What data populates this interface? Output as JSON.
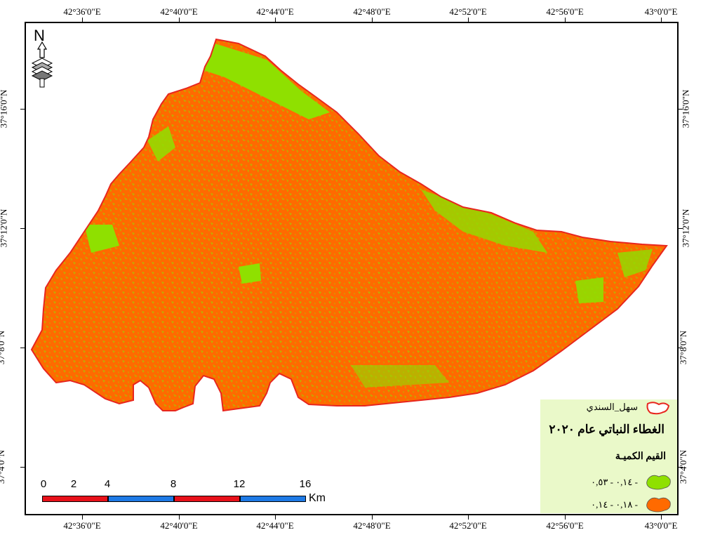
{
  "coords": {
    "top": [
      "42°36'0\"E",
      "42°40'0\"E",
      "42°44'0\"E",
      "42°48'0\"E",
      "42°52'0\"E",
      "42°56'0\"E",
      "43°0'0\"E"
    ],
    "bottom": [
      "42°36'0\"E",
      "42°40'0\"E",
      "42°44'0\"E",
      "42°48'0\"E",
      "42°52'0\"E",
      "42°56'0\"E",
      "43°0'0\"E"
    ],
    "left": [
      "37°16'0\"N",
      "37°12'0\"N",
      "37°8'0\"N",
      "37°4'0\"N"
    ],
    "right": [
      "37°16'0\"N",
      "37°12'0\"N",
      "37°8'0\"N",
      "37°4'0\"N"
    ]
  },
  "north_arrow": {
    "label": "N"
  },
  "legend": {
    "boundary_label": "سهل_السندي",
    "title": "الغطاء النباتي عام ٢٠٢٠",
    "subtitle": "القيم الكميـة",
    "classes": [
      {
        "label": "٠,١٤ - ٠,٥٣ -",
        "color": "#8fe000"
      },
      {
        "label": "٠,١٨ - ٠,١٤ -",
        "color": "#ff6a00"
      }
    ],
    "boundary_color": "#e8261e"
  },
  "scale_bar": {
    "labels": [
      "0",
      "2",
      "4",
      "8",
      "12",
      "16"
    ],
    "unit": "Km",
    "colors": [
      "#e8111a",
      "#1e7ae6"
    ]
  },
  "map_colors": {
    "vegetation": "#8fe000",
    "other": "#ff6a00",
    "outline": "#e8261e"
  }
}
